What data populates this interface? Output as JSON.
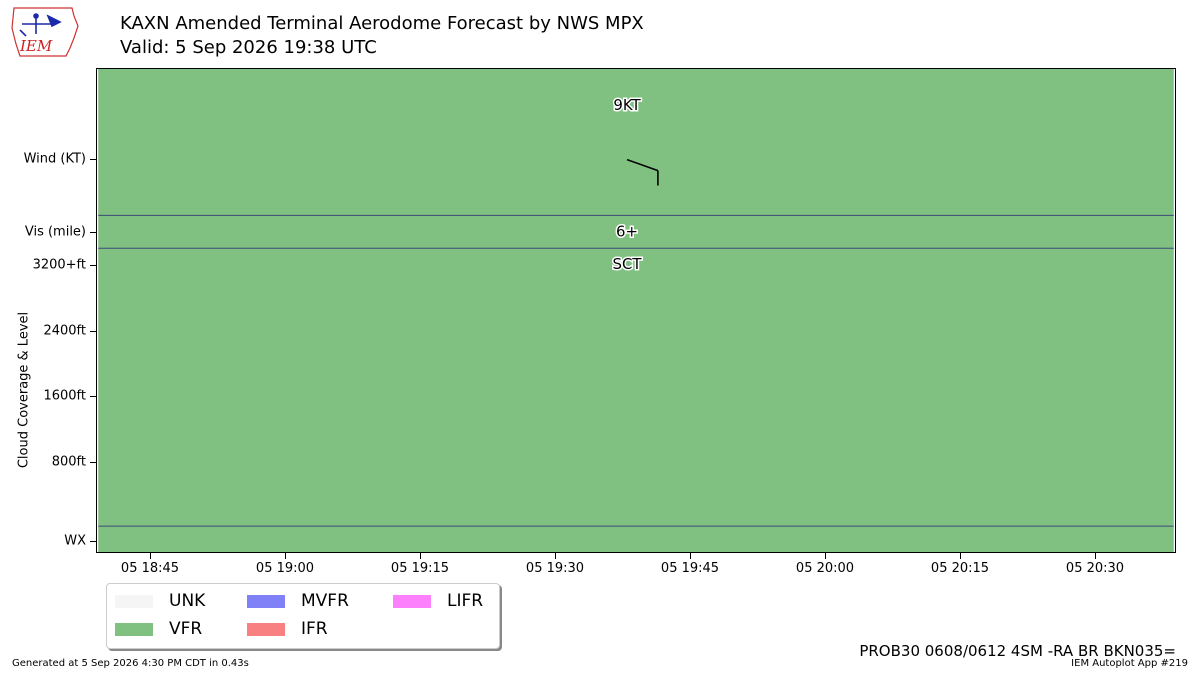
{
  "header": {
    "title": "KAXN Amended Terminal Aerodome Forecast by NWS MPX",
    "subtitle": "Valid: 5 Sep 2026 19:38 UTC",
    "logo_text": "IEM"
  },
  "chart_data": {
    "type": "timeline",
    "x_axis": {
      "ticks": [
        "05 18:45",
        "05 19:00",
        "05 19:15",
        "05 19:30",
        "05 19:45",
        "05 20:00",
        "05 20:15",
        "05 20:30"
      ],
      "tick_minutes": [
        0,
        15,
        30,
        45,
        60,
        75,
        90,
        105
      ],
      "range_minutes": [
        -6,
        114
      ]
    },
    "y_axis": {
      "title": "Cloud Coverage & Level",
      "rows": [
        "Wind (KT)",
        "Vis (mile)",
        "3200+ft",
        "2400ft",
        "1600ft",
        "800ft",
        "WX"
      ]
    },
    "background_category": "VFR",
    "forecast_time_minutes": 53,
    "wind": {
      "speed_label": "9KT",
      "speed_kt": 9,
      "direction_deg": 300
    },
    "visibility": "6+",
    "cloud": "SCT",
    "legend": [
      {
        "label": "UNK",
        "color": "#f5f5f5"
      },
      {
        "label": "VFR",
        "color": "#80c080"
      },
      {
        "label": "MVFR",
        "color": "#8080f7"
      },
      {
        "label": "IFR",
        "color": "#f88080"
      },
      {
        "label": "LIFR",
        "color": "#fc80fc"
      }
    ],
    "separator_color": "#3a4a7a"
  },
  "footer": {
    "raw_taf": "PROB30 0608/0612 4SM -RA BR BKN035=",
    "generated": "Generated at 5 Sep 2026 4:30 PM CDT in 0.43s",
    "app": "IEM Autoplot App #219"
  }
}
